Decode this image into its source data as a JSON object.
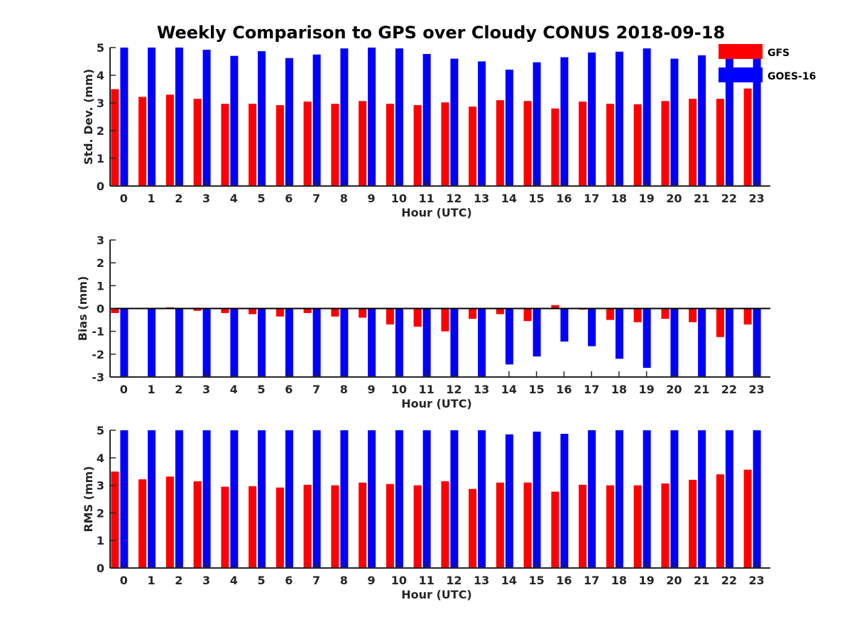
{
  "title": "Weekly Comparison to GPS over Cloudy CONUS 2018-09-18",
  "legend": [
    {
      "name": "GFS",
      "color": "#ff0000"
    },
    {
      "name": "GOES-16",
      "color": "#0000ff"
    }
  ],
  "chart_data": [
    {
      "type": "bar",
      "xlabel": "Hour (UTC)",
      "ylabel": "Std. Dev. (mm)",
      "categories": [
        "0",
        "1",
        "2",
        "3",
        "4",
        "5",
        "6",
        "7",
        "8",
        "9",
        "10",
        "11",
        "12",
        "13",
        "14",
        "15",
        "16",
        "17",
        "18",
        "19",
        "20",
        "21",
        "22",
        "23"
      ],
      "ylim": [
        0,
        5
      ],
      "yticks": [
        0,
        1,
        2,
        3,
        4,
        5
      ],
      "legend_position": "top-right",
      "series": [
        {
          "name": "GFS",
          "color": "#ff0000",
          "values": [
            3.5,
            3.22,
            3.3,
            3.15,
            2.97,
            2.97,
            2.92,
            3.05,
            2.97,
            3.07,
            2.97,
            2.92,
            3.02,
            2.87,
            3.1,
            3.07,
            2.8,
            3.05,
            2.97,
            2.95,
            3.07,
            3.15,
            3.15,
            3.52
          ]
        },
        {
          "name": "GOES-16",
          "color": "#0000ff",
          "values": [
            5.0,
            5.0,
            5.0,
            4.92,
            4.7,
            4.87,
            4.62,
            4.75,
            4.97,
            5.0,
            4.97,
            4.77,
            4.6,
            4.5,
            4.2,
            4.47,
            4.65,
            4.82,
            4.85,
            4.97,
            4.6,
            4.72,
            4.85,
            4.9
          ]
        }
      ]
    },
    {
      "type": "bar",
      "xlabel": "Hour (UTC)",
      "ylabel": "Bias (mm)",
      "categories": [
        "0",
        "1",
        "2",
        "3",
        "4",
        "5",
        "6",
        "7",
        "8",
        "9",
        "10",
        "11",
        "12",
        "13",
        "14",
        "15",
        "16",
        "17",
        "18",
        "19",
        "20",
        "21",
        "22",
        "23"
      ],
      "ylim": [
        -3,
        3
      ],
      "yticks": [
        -3,
        -2,
        -1,
        0,
        1,
        2,
        3
      ],
      "baseline": 0,
      "series": [
        {
          "name": "GFS",
          "color": "#ff0000",
          "values": [
            -0.2,
            0.0,
            0.05,
            -0.1,
            -0.2,
            -0.25,
            -0.35,
            -0.2,
            -0.35,
            -0.4,
            -0.7,
            -0.8,
            -1.0,
            -0.45,
            -0.25,
            -0.55,
            0.15,
            -0.05,
            -0.5,
            -0.6,
            -0.45,
            -0.6,
            -1.25,
            -0.7
          ]
        },
        {
          "name": "GOES-16",
          "color": "#0000ff",
          "values": [
            -3.0,
            -3.0,
            -3.0,
            -3.0,
            -3.0,
            -3.0,
            -3.0,
            -3.0,
            -3.0,
            -3.0,
            -3.0,
            -3.0,
            -3.0,
            -3.0,
            -2.45,
            -2.1,
            -1.45,
            -1.65,
            -2.2,
            -2.6,
            -3.0,
            -3.0,
            -3.0,
            -3.0
          ]
        }
      ]
    },
    {
      "type": "bar",
      "xlabel": "Hour (UTC)",
      "ylabel": "RMS (mm)",
      "categories": [
        "0",
        "1",
        "2",
        "3",
        "4",
        "5",
        "6",
        "7",
        "8",
        "9",
        "10",
        "11",
        "12",
        "13",
        "14",
        "15",
        "16",
        "17",
        "18",
        "19",
        "20",
        "21",
        "22",
        "23"
      ],
      "ylim": [
        0,
        5
      ],
      "yticks": [
        0,
        1,
        2,
        3,
        4,
        5
      ],
      "series": [
        {
          "name": "GFS",
          "color": "#ff0000",
          "values": [
            3.5,
            3.22,
            3.32,
            3.15,
            2.95,
            2.97,
            2.92,
            3.02,
            3.0,
            3.1,
            3.05,
            3.0,
            3.15,
            2.87,
            3.1,
            3.1,
            2.77,
            3.02,
            3.0,
            3.0,
            3.07,
            3.2,
            3.4,
            3.57
          ]
        },
        {
          "name": "GOES-16",
          "color": "#0000ff",
          "values": [
            5.0,
            5.0,
            5.0,
            5.0,
            5.0,
            5.0,
            5.0,
            5.0,
            5.0,
            5.0,
            5.0,
            5.0,
            5.0,
            5.0,
            4.85,
            4.95,
            4.87,
            5.0,
            5.0,
            5.0,
            5.0,
            5.0,
            5.0,
            5.0
          ]
        }
      ]
    }
  ]
}
